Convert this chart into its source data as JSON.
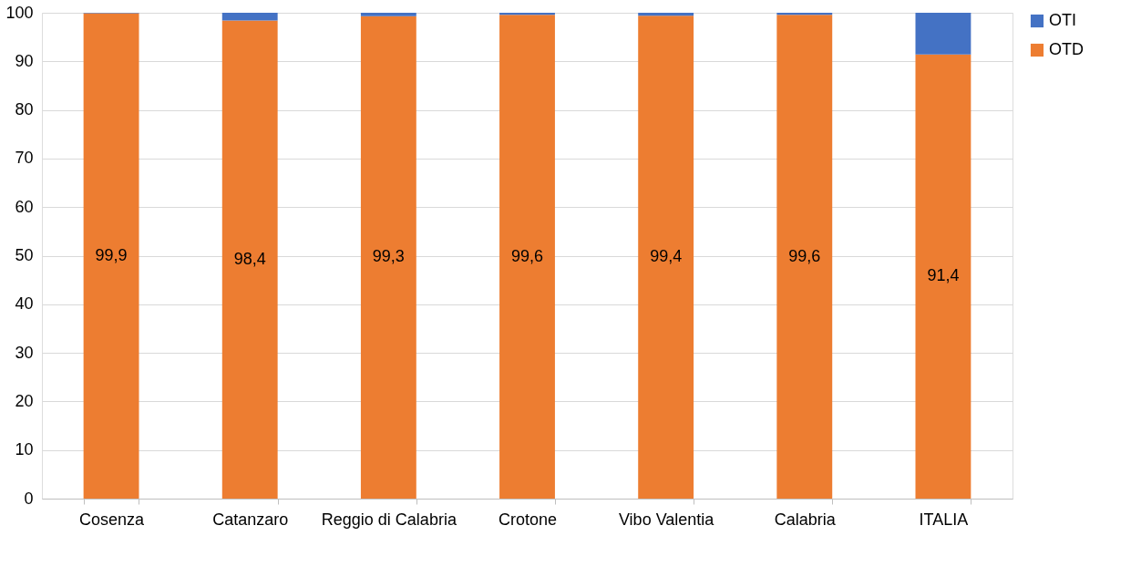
{
  "chart_data": {
    "type": "bar",
    "stacked": true,
    "categories": [
      "Cosenza",
      "Catanzaro",
      "Reggio di Calabria",
      "Crotone",
      "Vibo Valentia",
      "Calabria",
      "ITALIA"
    ],
    "series": [
      {
        "name": "OTD",
        "color": "#ed7d31",
        "values": [
          99.9,
          98.4,
          99.3,
          99.6,
          99.4,
          99.6,
          91.4
        ],
        "value_labels": [
          "99,9",
          "98,4",
          "99,3",
          "99,6",
          "99,4",
          "99,6",
          "91,4"
        ]
      },
      {
        "name": "OTI",
        "color": "#4472c4",
        "values": [
          0.1,
          1.6,
          0.7,
          0.4,
          0.6,
          0.4,
          8.6
        ]
      }
    ],
    "ylim": [
      0,
      100
    ],
    "yticks": [
      0,
      10,
      20,
      30,
      40,
      50,
      60,
      70,
      80,
      90,
      100
    ],
    "grid": "y",
    "legend": "right"
  }
}
